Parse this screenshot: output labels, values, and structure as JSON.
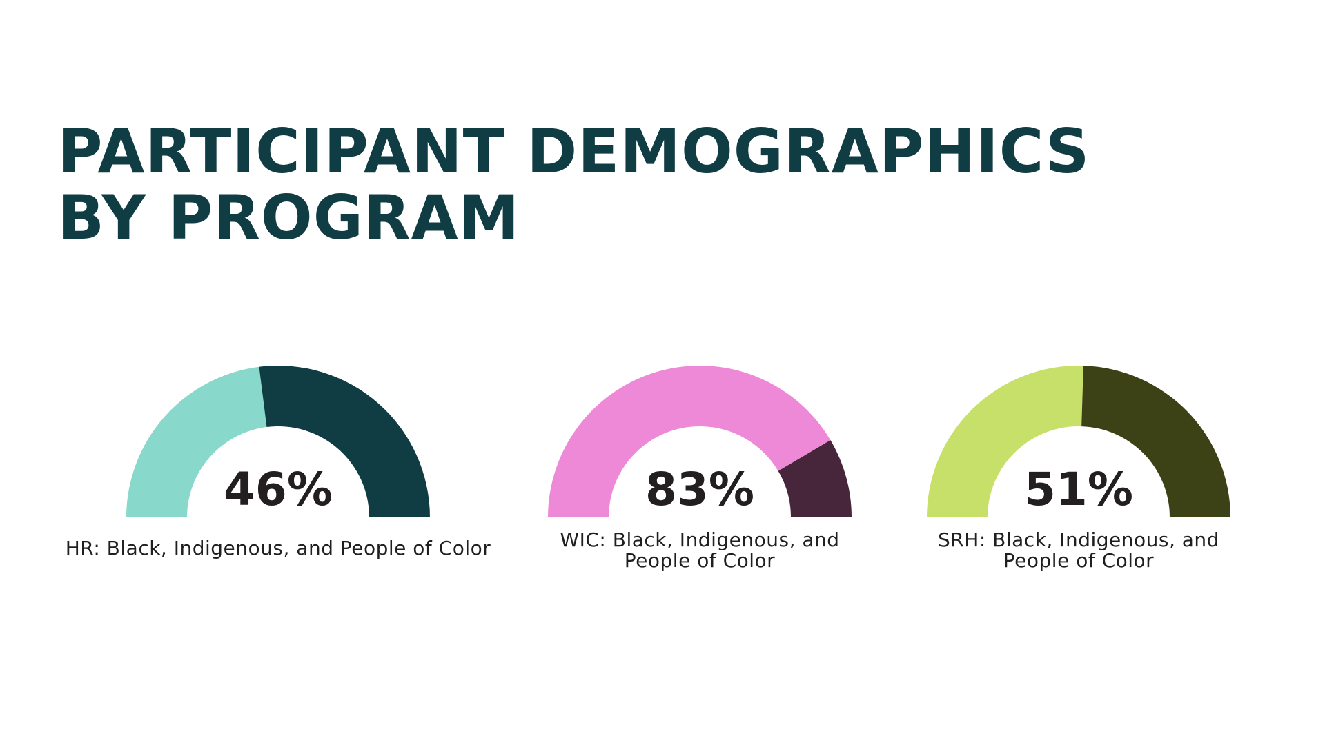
{
  "title": {
    "line1": "PARTICIPANT DEMOGRAPHICS",
    "line2": "BY PROGRAM"
  },
  "chart_data": [
    {
      "type": "gauge",
      "value_percent": 46,
      "value_label": "46%",
      "label_lines": [
        "HR: Black, Indigenous, and People of Color"
      ],
      "colors": {
        "filled": "#88d8cc",
        "remainder": "#103c43"
      }
    },
    {
      "type": "gauge",
      "value_percent": 83,
      "value_label": "83%",
      "label_lines": [
        "WIC: Black, Indigenous, and",
        "People of Color"
      ],
      "colors": {
        "filled": "#ee89d8",
        "remainder": "#47253b"
      }
    },
    {
      "type": "gauge",
      "value_percent": 51,
      "value_label": "51%",
      "label_lines": [
        "SRH: Black, Indigenous, and",
        "People of Color"
      ],
      "colors": {
        "filled": "#c7e06a",
        "remainder": "#3d4116"
      }
    }
  ]
}
